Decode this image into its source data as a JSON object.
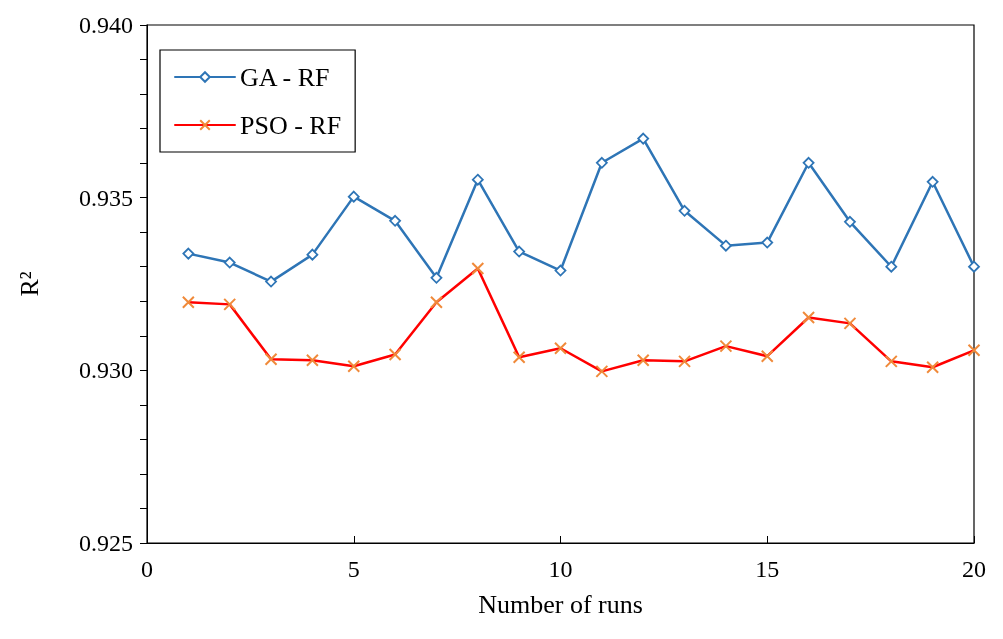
{
  "chart_data": {
    "type": "line",
    "xlabel": "Number of runs",
    "ylabel": "R²",
    "x": [
      1,
      2,
      3,
      4,
      5,
      6,
      7,
      8,
      9,
      10,
      11,
      12,
      13,
      14,
      15,
      16,
      17,
      18,
      19,
      20
    ],
    "series": [
      {
        "name": "GA - RF",
        "color": "#2e75b6",
        "marker": "diamond",
        "values": [
          0.93338,
          0.93312,
          0.93257,
          0.93335,
          0.93503,
          0.93433,
          0.93268,
          0.93552,
          0.93344,
          0.93289,
          0.93601,
          0.93671,
          0.93462,
          0.93361,
          0.9337,
          0.93601,
          0.9343,
          0.933,
          0.93546,
          0.933
        ]
      },
      {
        "name": "PSO - RF",
        "color": "#ff0000",
        "marker": "cross",
        "values": [
          0.93197,
          0.93191,
          0.93032,
          0.93029,
          0.93012,
          0.93046,
          0.93197,
          0.93295,
          0.93038,
          0.93064,
          0.92997,
          0.93029,
          0.93026,
          0.9307,
          0.93041,
          0.93153,
          0.93136,
          0.93026,
          0.93009,
          0.93058
        ]
      }
    ],
    "xlim": [
      0,
      20
    ],
    "xticks": [
      0,
      5,
      10,
      15,
      20
    ],
    "ylim": [
      0.925,
      0.94
    ],
    "yticks": [
      {
        "value": 0.925,
        "label": "0.925"
      },
      {
        "value": 0.926,
        "label": null
      },
      {
        "value": 0.927,
        "label": null
      },
      {
        "value": 0.928,
        "label": null
      },
      {
        "value": 0.929,
        "label": null
      },
      {
        "value": 0.93,
        "label": "0.930"
      },
      {
        "value": 0.931,
        "label": null
      },
      {
        "value": 0.932,
        "label": null
      },
      {
        "value": 0.933,
        "label": null
      },
      {
        "value": 0.934,
        "label": null
      },
      {
        "value": 0.935,
        "label": "0.935"
      },
      {
        "value": 0.936,
        "label": null
      },
      {
        "value": 0.937,
        "label": null
      },
      {
        "value": 0.938,
        "label": null
      },
      {
        "value": 0.939,
        "label": null
      },
      {
        "value": 0.94,
        "label": "0.940"
      }
    ],
    "grid": false,
    "legend": "top left",
    "line_style": "solid"
  }
}
